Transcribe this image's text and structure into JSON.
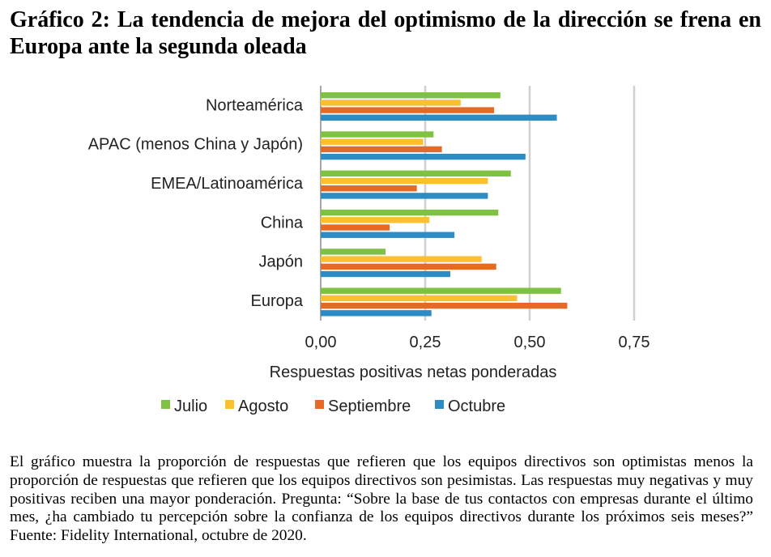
{
  "title": "Gráfico 2: La tendencia de mejora del optimismo de la dirección se frena en Europa ante la segunda oleada",
  "caption": "El gráfico muestra la proporción de respuestas que refieren que los equipos directivos son optimistas menos la proporción de respuestas que refieren que los equipos directivos son pesimistas. Las respuestas muy negativas y muy positivas reciben una mayor ponderación. Pregunta: “Sobre la base de tus contactos con empresas durante el último mes, ¿ha cambiado tu percepción sobre la confianza de los equipos directivos durante los próximos seis meses?” Fuente: Fidelity International, octubre de 2020.",
  "chart_data": {
    "type": "bar",
    "orientation": "horizontal",
    "categories": [
      "Norteamérica",
      "APAC (menos China y Japón)",
      "EMEA/Latinoamérica",
      "China",
      "Japón",
      "Europa"
    ],
    "series": [
      {
        "name": "Julio",
        "color": "#7fc241",
        "values": [
          0.43,
          0.27,
          0.455,
          0.425,
          0.155,
          0.575
        ]
      },
      {
        "name": "Agosto",
        "color": "#fbc02d",
        "values": [
          0.335,
          0.245,
          0.4,
          0.26,
          0.385,
          0.47
        ]
      },
      {
        "name": "Septiembre",
        "color": "#e46a26",
        "values": [
          0.415,
          0.29,
          0.23,
          0.165,
          0.42,
          0.59
        ]
      },
      {
        "name": "Octubre",
        "color": "#2d8cc3",
        "values": [
          0.565,
          0.49,
          0.4,
          0.32,
          0.31,
          0.265
        ]
      }
    ],
    "xlabel": "Respuestas positivas netas ponderadas",
    "xlim": [
      0,
      0.75
    ],
    "xticks": [
      0,
      0.25,
      0.5,
      0.75
    ],
    "xtick_labels": [
      "0,00",
      "0,25",
      "0,50",
      "0,75"
    ],
    "grid": true,
    "legend_position": "bottom"
  }
}
